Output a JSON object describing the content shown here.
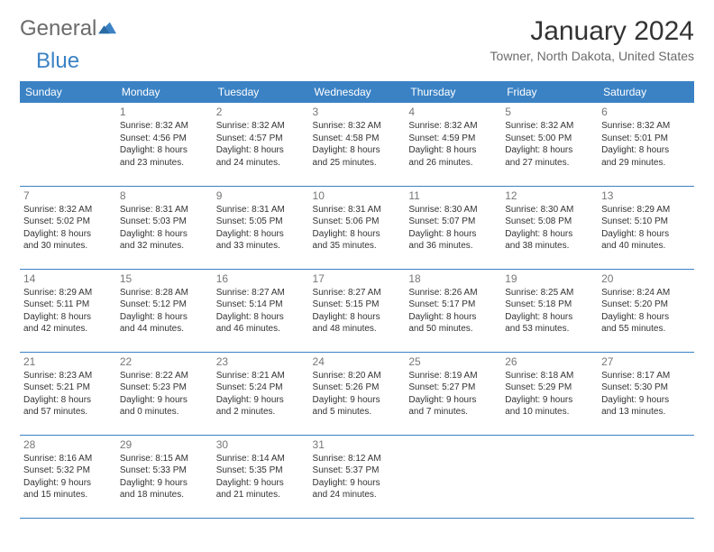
{
  "brand": {
    "general": "General",
    "blue": "Blue"
  },
  "title": "January 2024",
  "location": "Towner, North Dakota, United States",
  "colors": {
    "accent": "#3b82c4",
    "text": "#333333",
    "muted": "#6b6b6b",
    "bg": "#ffffff"
  },
  "weekdays": [
    "Sunday",
    "Monday",
    "Tuesday",
    "Wednesday",
    "Thursday",
    "Friday",
    "Saturday"
  ],
  "calendar": {
    "type": "table",
    "first_weekday_index": 1,
    "days": [
      {
        "n": "1",
        "sunrise": "Sunrise: 8:32 AM",
        "sunset": "Sunset: 4:56 PM",
        "day1": "Daylight: 8 hours",
        "day2": "and 23 minutes."
      },
      {
        "n": "2",
        "sunrise": "Sunrise: 8:32 AM",
        "sunset": "Sunset: 4:57 PM",
        "day1": "Daylight: 8 hours",
        "day2": "and 24 minutes."
      },
      {
        "n": "3",
        "sunrise": "Sunrise: 8:32 AM",
        "sunset": "Sunset: 4:58 PM",
        "day1": "Daylight: 8 hours",
        "day2": "and 25 minutes."
      },
      {
        "n": "4",
        "sunrise": "Sunrise: 8:32 AM",
        "sunset": "Sunset: 4:59 PM",
        "day1": "Daylight: 8 hours",
        "day2": "and 26 minutes."
      },
      {
        "n": "5",
        "sunrise": "Sunrise: 8:32 AM",
        "sunset": "Sunset: 5:00 PM",
        "day1": "Daylight: 8 hours",
        "day2": "and 27 minutes."
      },
      {
        "n": "6",
        "sunrise": "Sunrise: 8:32 AM",
        "sunset": "Sunset: 5:01 PM",
        "day1": "Daylight: 8 hours",
        "day2": "and 29 minutes."
      },
      {
        "n": "7",
        "sunrise": "Sunrise: 8:32 AM",
        "sunset": "Sunset: 5:02 PM",
        "day1": "Daylight: 8 hours",
        "day2": "and 30 minutes."
      },
      {
        "n": "8",
        "sunrise": "Sunrise: 8:31 AM",
        "sunset": "Sunset: 5:03 PM",
        "day1": "Daylight: 8 hours",
        "day2": "and 32 minutes."
      },
      {
        "n": "9",
        "sunrise": "Sunrise: 8:31 AM",
        "sunset": "Sunset: 5:05 PM",
        "day1": "Daylight: 8 hours",
        "day2": "and 33 minutes."
      },
      {
        "n": "10",
        "sunrise": "Sunrise: 8:31 AM",
        "sunset": "Sunset: 5:06 PM",
        "day1": "Daylight: 8 hours",
        "day2": "and 35 minutes."
      },
      {
        "n": "11",
        "sunrise": "Sunrise: 8:30 AM",
        "sunset": "Sunset: 5:07 PM",
        "day1": "Daylight: 8 hours",
        "day2": "and 36 minutes."
      },
      {
        "n": "12",
        "sunrise": "Sunrise: 8:30 AM",
        "sunset": "Sunset: 5:08 PM",
        "day1": "Daylight: 8 hours",
        "day2": "and 38 minutes."
      },
      {
        "n": "13",
        "sunrise": "Sunrise: 8:29 AM",
        "sunset": "Sunset: 5:10 PM",
        "day1": "Daylight: 8 hours",
        "day2": "and 40 minutes."
      },
      {
        "n": "14",
        "sunrise": "Sunrise: 8:29 AM",
        "sunset": "Sunset: 5:11 PM",
        "day1": "Daylight: 8 hours",
        "day2": "and 42 minutes."
      },
      {
        "n": "15",
        "sunrise": "Sunrise: 8:28 AM",
        "sunset": "Sunset: 5:12 PM",
        "day1": "Daylight: 8 hours",
        "day2": "and 44 minutes."
      },
      {
        "n": "16",
        "sunrise": "Sunrise: 8:27 AM",
        "sunset": "Sunset: 5:14 PM",
        "day1": "Daylight: 8 hours",
        "day2": "and 46 minutes."
      },
      {
        "n": "17",
        "sunrise": "Sunrise: 8:27 AM",
        "sunset": "Sunset: 5:15 PM",
        "day1": "Daylight: 8 hours",
        "day2": "and 48 minutes."
      },
      {
        "n": "18",
        "sunrise": "Sunrise: 8:26 AM",
        "sunset": "Sunset: 5:17 PM",
        "day1": "Daylight: 8 hours",
        "day2": "and 50 minutes."
      },
      {
        "n": "19",
        "sunrise": "Sunrise: 8:25 AM",
        "sunset": "Sunset: 5:18 PM",
        "day1": "Daylight: 8 hours",
        "day2": "and 53 minutes."
      },
      {
        "n": "20",
        "sunrise": "Sunrise: 8:24 AM",
        "sunset": "Sunset: 5:20 PM",
        "day1": "Daylight: 8 hours",
        "day2": "and 55 minutes."
      },
      {
        "n": "21",
        "sunrise": "Sunrise: 8:23 AM",
        "sunset": "Sunset: 5:21 PM",
        "day1": "Daylight: 8 hours",
        "day2": "and 57 minutes."
      },
      {
        "n": "22",
        "sunrise": "Sunrise: 8:22 AM",
        "sunset": "Sunset: 5:23 PM",
        "day1": "Daylight: 9 hours",
        "day2": "and 0 minutes."
      },
      {
        "n": "23",
        "sunrise": "Sunrise: 8:21 AM",
        "sunset": "Sunset: 5:24 PM",
        "day1": "Daylight: 9 hours",
        "day2": "and 2 minutes."
      },
      {
        "n": "24",
        "sunrise": "Sunrise: 8:20 AM",
        "sunset": "Sunset: 5:26 PM",
        "day1": "Daylight: 9 hours",
        "day2": "and 5 minutes."
      },
      {
        "n": "25",
        "sunrise": "Sunrise: 8:19 AM",
        "sunset": "Sunset: 5:27 PM",
        "day1": "Daylight: 9 hours",
        "day2": "and 7 minutes."
      },
      {
        "n": "26",
        "sunrise": "Sunrise: 8:18 AM",
        "sunset": "Sunset: 5:29 PM",
        "day1": "Daylight: 9 hours",
        "day2": "and 10 minutes."
      },
      {
        "n": "27",
        "sunrise": "Sunrise: 8:17 AM",
        "sunset": "Sunset: 5:30 PM",
        "day1": "Daylight: 9 hours",
        "day2": "and 13 minutes."
      },
      {
        "n": "28",
        "sunrise": "Sunrise: 8:16 AM",
        "sunset": "Sunset: 5:32 PM",
        "day1": "Daylight: 9 hours",
        "day2": "and 15 minutes."
      },
      {
        "n": "29",
        "sunrise": "Sunrise: 8:15 AM",
        "sunset": "Sunset: 5:33 PM",
        "day1": "Daylight: 9 hours",
        "day2": "and 18 minutes."
      },
      {
        "n": "30",
        "sunrise": "Sunrise: 8:14 AM",
        "sunset": "Sunset: 5:35 PM",
        "day1": "Daylight: 9 hours",
        "day2": "and 21 minutes."
      },
      {
        "n": "31",
        "sunrise": "Sunrise: 8:12 AM",
        "sunset": "Sunset: 5:37 PM",
        "day1": "Daylight: 9 hours",
        "day2": "and 24 minutes."
      }
    ]
  }
}
